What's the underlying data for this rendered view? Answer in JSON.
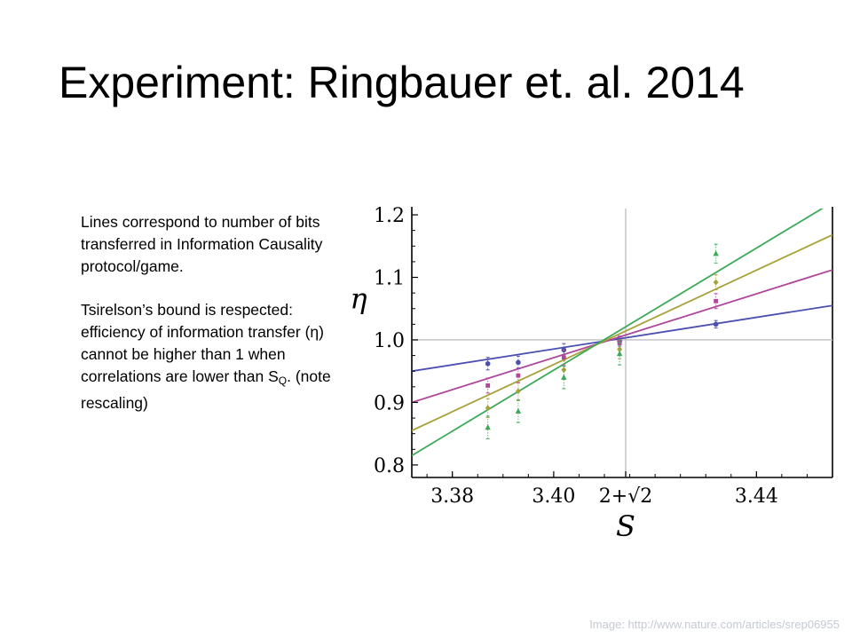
{
  "slide": {
    "title": "Experiment: Ringbauer et. al. 2014",
    "paragraph1": "Lines correspond to number of bits transferred in Information Causality protocol/game.",
    "paragraph2_prefix": "Tsirelson’s bound is respected: efficiency of information transfer (η) cannot be higher than 1 when correlations are lower than S",
    "paragraph2_sub": "Q",
    "paragraph2_suffix": ". (note rescaling)",
    "caption": "Image: http://www.nature.com/articles/srep06955"
  },
  "chart_data": {
    "type": "scatter",
    "xlabel": "S",
    "ylabel": "η",
    "xlim": [
      3.372,
      3.455
    ],
    "ylim": [
      0.78,
      1.21
    ],
    "x_ticks": [
      {
        "value": 3.38,
        "label": "3.38"
      },
      {
        "value": 3.4,
        "label": "3.40"
      },
      {
        "value": 3.4142,
        "label": "2+√2"
      },
      {
        "value": 3.44,
        "label": "3.44"
      }
    ],
    "y_ticks": [
      {
        "value": 0.8,
        "label": "0.8"
      },
      {
        "value": 0.9,
        "label": "0.9"
      },
      {
        "value": 1.0,
        "label": "1.0"
      },
      {
        "value": 1.1,
        "label": "1.1"
      },
      {
        "value": 1.2,
        "label": "1.2"
      }
    ],
    "reference_lines": {
      "x": 3.4142,
      "y": 1.0
    },
    "grid": false,
    "legend": "none",
    "series": [
      {
        "color": "#4a4fb0",
        "marker": "circle",
        "line": {
          "x": [
            3.372,
            3.455
          ],
          "y": [
            0.95,
            1.055
          ]
        },
        "points": [
          {
            "x": 3.387,
            "y": 0.962,
            "err": 0.01
          },
          {
            "x": 3.393,
            "y": 0.964,
            "err": 0.01
          },
          {
            "x": 3.402,
            "y": 0.984,
            "err": 0.01
          },
          {
            "x": 3.413,
            "y": 0.998,
            "err": 0.008
          },
          {
            "x": 3.432,
            "y": 1.025,
            "err": 0.006
          }
        ]
      },
      {
        "color": "#b0459a",
        "marker": "square",
        "line": {
          "x": [
            3.372,
            3.455
          ],
          "y": [
            0.9,
            1.112
          ]
        },
        "points": [
          {
            "x": 3.387,
            "y": 0.927,
            "err": 0.012
          },
          {
            "x": 3.393,
            "y": 0.943,
            "err": 0.012
          },
          {
            "x": 3.402,
            "y": 0.972,
            "err": 0.012
          },
          {
            "x": 3.413,
            "y": 0.995,
            "err": 0.01
          },
          {
            "x": 3.432,
            "y": 1.062,
            "err": 0.012
          }
        ]
      },
      {
        "color": "#a8a23a",
        "marker": "diamond",
        "line": {
          "x": [
            3.372,
            3.455
          ],
          "y": [
            0.855,
            1.168
          ]
        },
        "points": [
          {
            "x": 3.387,
            "y": 0.891,
            "err": 0.015
          },
          {
            "x": 3.393,
            "y": 0.918,
            "err": 0.015
          },
          {
            "x": 3.402,
            "y": 0.952,
            "err": 0.015
          },
          {
            "x": 3.413,
            "y": 0.985,
            "err": 0.015
          },
          {
            "x": 3.432,
            "y": 1.092,
            "err": 0.012
          }
        ]
      },
      {
        "color": "#3daa5a",
        "marker": "triangle",
        "line": {
          "x": [
            3.372,
            3.455
          ],
          "y": [
            0.815,
            1.22
          ]
        },
        "points": [
          {
            "x": 3.387,
            "y": 0.86,
            "err": 0.018
          },
          {
            "x": 3.393,
            "y": 0.886,
            "err": 0.018
          },
          {
            "x": 3.402,
            "y": 0.94,
            "err": 0.018
          },
          {
            "x": 3.413,
            "y": 0.978,
            "err": 0.018
          },
          {
            "x": 3.432,
            "y": 1.138,
            "err": 0.015
          }
        ]
      }
    ]
  }
}
